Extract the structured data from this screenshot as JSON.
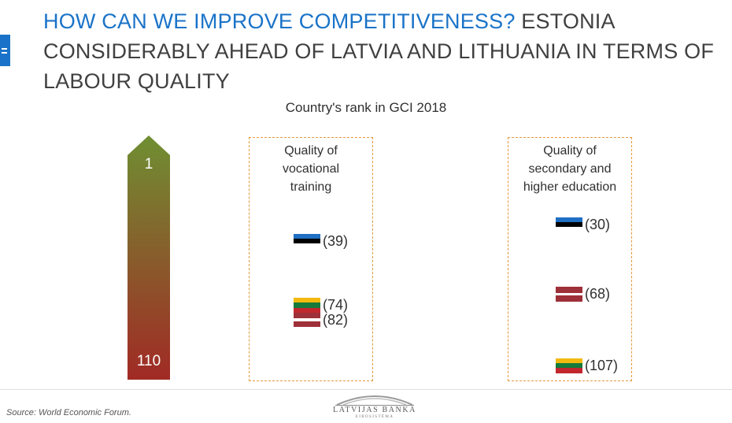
{
  "headline": {
    "accent": "HOW CAN WE IMPROVE COMPETITIVENESS?",
    "rest": " ESTONIA CONSIDERABLY AHEAD OF LATVIA AND LITHUANIA IN TERMS OF LABOUR QUALITY",
    "accent_color": "#1a73c8"
  },
  "chart_data": {
    "type": "scatter",
    "title": "Country's rank in GCI 2018",
    "scale": {
      "top": "1",
      "bottom": "110",
      "min": 1,
      "max": 110,
      "top_color": "#6f8f32",
      "bottom_color": "#a12a25"
    },
    "panels": [
      {
        "title": "Quality of\nvocational\ntraining",
        "entries": [
          {
            "country": "Estonia",
            "flag": "ee",
            "rank": 39,
            "label": "(39)"
          },
          {
            "country": "Lithuania",
            "flag": "lt",
            "rank": 74,
            "label": "(74)"
          },
          {
            "country": "Latvia",
            "flag": "lv",
            "rank": 82,
            "label": "(82)"
          }
        ]
      },
      {
        "title": "Quality of\nsecondary and\nhigher education",
        "entries": [
          {
            "country": "Estonia",
            "flag": "ee",
            "rank": 30,
            "label": "(30)"
          },
          {
            "country": "Latvia",
            "flag": "lv",
            "rank": 68,
            "label": "(68)"
          },
          {
            "country": "Lithuania",
            "flag": "lt",
            "rank": 107,
            "label": "(107)"
          }
        ]
      }
    ],
    "flag_colors": {
      "ee": [
        "#1f6fc4",
        "#000000",
        "#ffffff"
      ],
      "lt": [
        "#f2b90f",
        "#157a3a",
        "#c1272d"
      ],
      "lv": [
        "#9e3039",
        "#ffffff",
        "#9e3039"
      ]
    }
  },
  "footer": {
    "source": "Source: World Economic Forum.",
    "logo_name": "LATVIJAS BANKA",
    "logo_sub": "EIROSISTĒMA"
  }
}
